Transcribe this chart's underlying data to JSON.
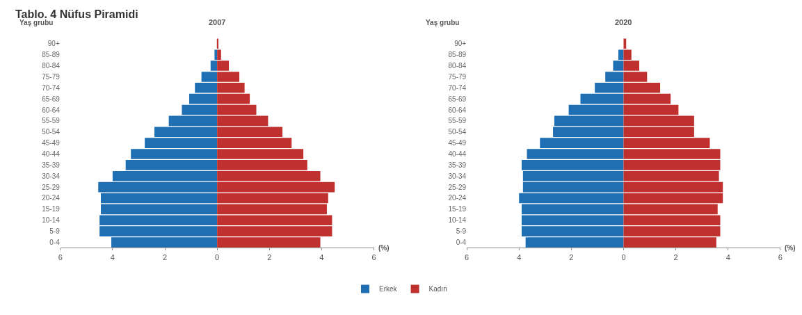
{
  "chart_data": [
    {
      "type": "bar",
      "orientation": "horizontal",
      "stacked": true,
      "title": "2007",
      "ylabel": "Yaş grubu",
      "xlabel": "(%)",
      "annotations": [
        "Tablo. 4 Nüfus Piramidi"
      ],
      "categories": [
        "90+",
        "85-89",
        "80-84",
        "75-79",
        "70-74",
        "65-69",
        "60-64",
        "55-59",
        "50-54",
        "45-49",
        "40-44",
        "35-39",
        "30-34",
        "25-29",
        "20-24",
        "15-19",
        "10-14",
        "5-9",
        "0-4"
      ],
      "series": [
        {
          "name": "Erkek",
          "color": "#1f6fb5",
          "values": [
            null,
            -0.1,
            -0.25,
            -0.6,
            -0.85,
            -1.07,
            -1.35,
            -1.85,
            -2.4,
            -2.77,
            -3.3,
            -3.5,
            -4.0,
            -4.55,
            -4.45,
            -4.45,
            -4.5,
            -4.5,
            -4.05
          ]
        },
        {
          "name": "Kadın",
          "color": "#c0302f",
          "values": [
            0.05,
            0.15,
            0.45,
            0.85,
            1.05,
            1.25,
            1.5,
            1.95,
            2.5,
            2.85,
            3.3,
            3.45,
            3.95,
            4.5,
            4.25,
            4.2,
            4.4,
            4.4,
            3.95
          ]
        }
      ],
      "xlim": [
        -6,
        6
      ],
      "xticks": [
        {
          "value": -6,
          "label": "6"
        },
        {
          "value": -4,
          "label": "4"
        },
        {
          "value": -2,
          "label": "2"
        },
        0,
        2,
        4,
        6
      ],
      "legend": "bottom"
    },
    {
      "type": "bar",
      "orientation": "horizontal",
      "stacked": true,
      "title": "2020",
      "ylabel": "Yaş grubu",
      "xlabel": "(%)",
      "categories": [
        "90+",
        "85-89",
        "80-84",
        "75-79",
        "70-74",
        "65-69",
        "60-64",
        "55-59",
        "50-54",
        "45-49",
        "40-44",
        "35-39",
        "30-34",
        "25-29",
        "20-24",
        "15-19",
        "10-14",
        "5-9",
        "0-4"
      ],
      "series": [
        {
          "name": "Erkek",
          "color": "#1f6fb5",
          "values": [
            null,
            -0.2,
            -0.4,
            -0.7,
            -1.1,
            -1.65,
            -2.1,
            -2.65,
            -2.7,
            -3.2,
            -3.7,
            -3.9,
            -3.85,
            -3.85,
            -4.0,
            -3.9,
            -3.9,
            -3.9,
            -3.75
          ]
        },
        {
          "name": "Kadın",
          "color": "#c0302f",
          "values": [
            0.1,
            0.3,
            0.6,
            0.9,
            1.4,
            1.8,
            2.1,
            2.7,
            2.7,
            3.3,
            3.7,
            3.7,
            3.65,
            3.8,
            3.8,
            3.6,
            3.7,
            3.7,
            3.55
          ]
        }
      ],
      "xlim": [
        -6,
        6
      ],
      "xticks": [
        {
          "value": -6,
          "label": "6"
        },
        {
          "value": -4,
          "label": "4"
        },
        {
          "value": -2,
          "label": "2"
        },
        0,
        2,
        4,
        6
      ]
    }
  ]
}
